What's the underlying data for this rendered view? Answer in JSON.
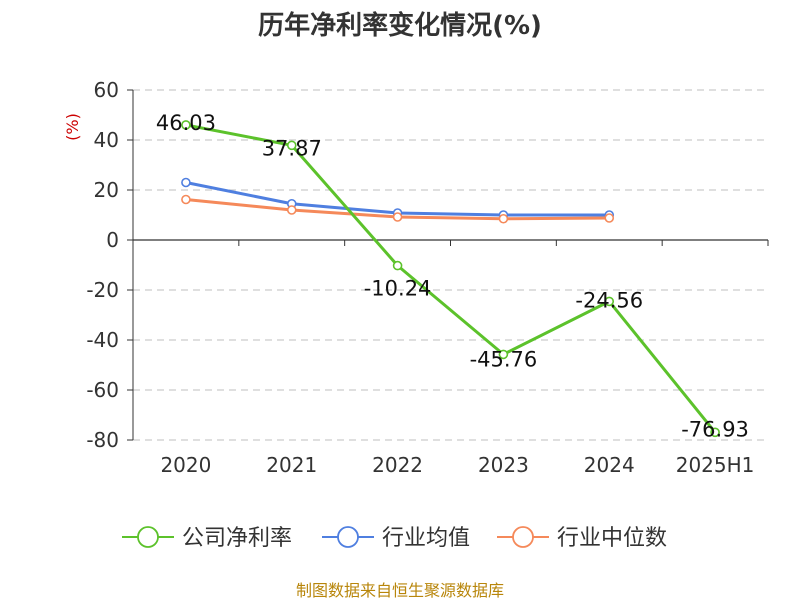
{
  "chart_data": {
    "type": "line",
    "title": "历年净利率变化情况(%)",
    "ylabel": "(%)",
    "categories": [
      "2020",
      "2021",
      "2022",
      "2023",
      "2024",
      "2025H1"
    ],
    "yticks": [
      "60",
      "40",
      "20",
      "0",
      "-20",
      "-40",
      "-60",
      "-80"
    ],
    "ylim": [
      -80,
      60
    ],
    "grid": true,
    "legend_position": "bottom",
    "series": [
      {
        "name": "公司净利率",
        "color": "#5cc22b",
        "values": [
          46.03,
          37.87,
          -10.24,
          -45.76,
          -24.56,
          -76.93
        ],
        "labels": [
          "46.03",
          "37.87",
          "-10.24",
          "-45.76",
          "-24.56",
          "-76.93"
        ]
      },
      {
        "name": "行业均值",
        "color": "#4f7fe0",
        "values": [
          23.0,
          14.5,
          10.8,
          10.0,
          10.0,
          null
        ]
      },
      {
        "name": "行业中位数",
        "color": "#f5895a",
        "values": [
          16.2,
          12.0,
          9.2,
          8.5,
          8.8,
          null
        ]
      }
    ]
  },
  "footer": {
    "source": "制图数据来自恒生聚源数据库"
  }
}
